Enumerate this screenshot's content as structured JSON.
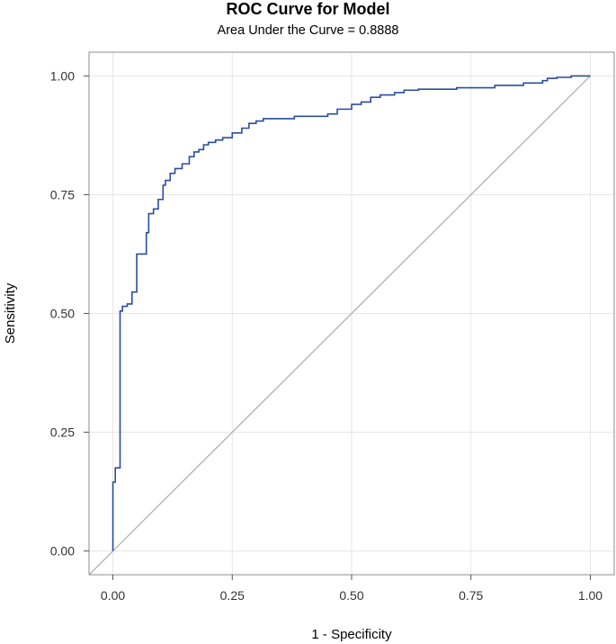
{
  "chart_data": {
    "type": "line",
    "title": "ROC Curve for Model",
    "subtitle": "Area Under the Curve = 0.8888",
    "xlabel": "1 - Specificity",
    "ylabel": "Sensitivity",
    "xlim": [
      -0.05,
      1.05
    ],
    "ylim": [
      -0.05,
      1.05
    ],
    "x_ticks": [
      "0.00",
      "0.25",
      "0.50",
      "0.75",
      "1.00"
    ],
    "y_ticks": [
      "0.00",
      "0.25",
      "0.50",
      "0.75",
      "1.00"
    ],
    "grid": true,
    "colors": {
      "roc": "#2a4d9e",
      "reference": "#b0b0b0",
      "grid": "#e6e6e6",
      "frame": "#8c8c8c"
    },
    "reference_line": {
      "x": [
        -0.05,
        1.0
      ],
      "y": [
        -0.05,
        1.0
      ]
    },
    "series": [
      {
        "type": "step",
        "x": [
          0.0,
          0.0,
          0.005,
          0.005,
          0.015,
          0.015,
          0.02,
          0.02,
          0.03,
          0.03,
          0.04,
          0.04,
          0.05,
          0.05,
          0.06,
          0.06,
          0.07,
          0.07,
          0.075,
          0.075,
          0.085,
          0.085,
          0.095,
          0.095,
          0.105,
          0.105,
          0.11,
          0.11,
          0.12,
          0.12,
          0.13,
          0.13,
          0.145,
          0.145,
          0.16,
          0.16,
          0.17,
          0.17,
          0.18,
          0.18,
          0.19,
          0.19,
          0.2,
          0.2,
          0.215,
          0.215,
          0.23,
          0.23,
          0.25,
          0.25,
          0.27,
          0.27,
          0.285,
          0.285,
          0.3,
          0.3,
          0.315,
          0.315,
          0.335,
          0.335,
          0.38,
          0.38,
          0.4,
          0.4,
          0.45,
          0.45,
          0.47,
          0.47,
          0.5,
          0.5,
          0.52,
          0.52,
          0.54,
          0.54,
          0.56,
          0.56,
          0.59,
          0.59,
          0.61,
          0.61,
          0.64,
          0.64,
          0.72,
          0.72,
          0.8,
          0.8,
          0.86,
          0.86,
          0.9,
          0.9,
          0.91,
          0.91,
          0.93,
          0.93,
          0.96,
          0.96,
          1.0
        ],
        "y": [
          0.0,
          0.145,
          0.145,
          0.175,
          0.175,
          0.505,
          0.505,
          0.515,
          0.515,
          0.52,
          0.52,
          0.545,
          0.545,
          0.625,
          0.625,
          0.625,
          0.625,
          0.67,
          0.67,
          0.71,
          0.71,
          0.72,
          0.72,
          0.74,
          0.74,
          0.77,
          0.77,
          0.78,
          0.78,
          0.795,
          0.795,
          0.805,
          0.805,
          0.815,
          0.815,
          0.83,
          0.83,
          0.84,
          0.84,
          0.845,
          0.845,
          0.855,
          0.855,
          0.86,
          0.86,
          0.865,
          0.865,
          0.87,
          0.87,
          0.88,
          0.88,
          0.89,
          0.89,
          0.9,
          0.9,
          0.905,
          0.905,
          0.91,
          0.91,
          0.91,
          0.91,
          0.915,
          0.915,
          0.915,
          0.915,
          0.92,
          0.92,
          0.93,
          0.93,
          0.94,
          0.94,
          0.945,
          0.945,
          0.955,
          0.955,
          0.96,
          0.96,
          0.965,
          0.965,
          0.97,
          0.97,
          0.972,
          0.972,
          0.975,
          0.975,
          0.98,
          0.98,
          0.985,
          0.985,
          0.99,
          0.99,
          0.995,
          0.995,
          0.997,
          0.997,
          1.0,
          1.0
        ]
      }
    ]
  }
}
